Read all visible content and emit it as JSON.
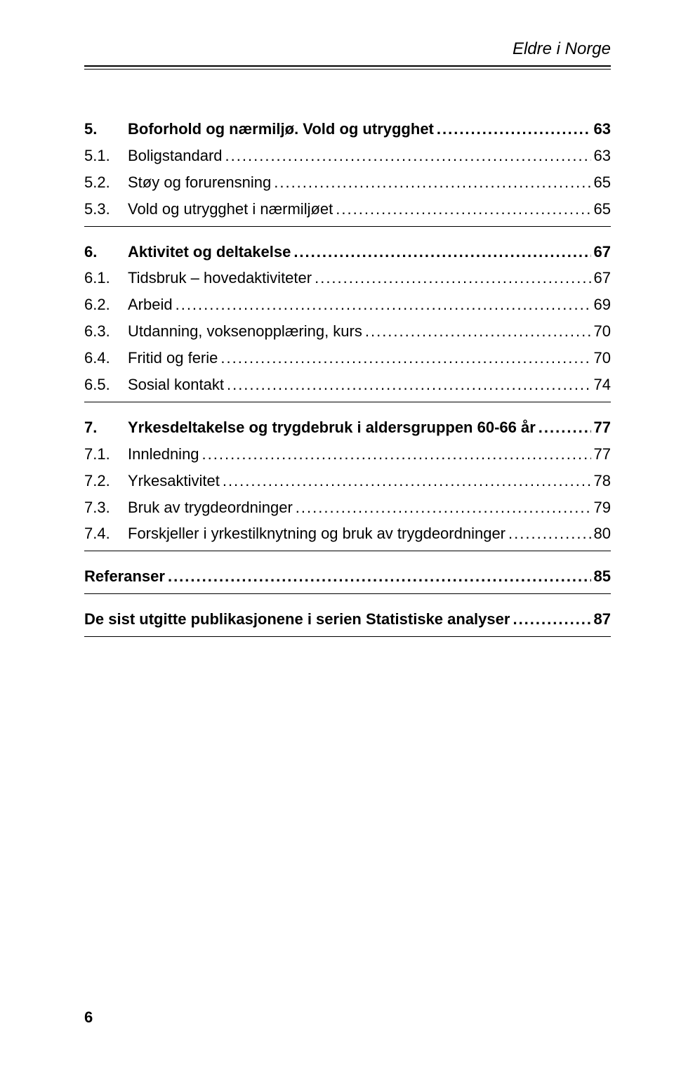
{
  "header": {
    "title": "Eldre i Norge"
  },
  "leader_fill": "............................................................................................................................................................................................",
  "sections": [
    {
      "head": {
        "num": "5.",
        "label": "Boforhold og nærmiljø. Vold og utrygghet",
        "page": "63",
        "bold": true
      },
      "rows": [
        {
          "num": "5.1.",
          "label": "Boligstandard",
          "page": "63"
        },
        {
          "num": "5.2.",
          "label": "Støy og forurensning",
          "page": "65"
        },
        {
          "num": "5.3.",
          "label": "Vold og utrygghet i nærmiljøet",
          "page": "65"
        }
      ]
    },
    {
      "head": {
        "num": "6.",
        "label": "Aktivitet og deltakelse",
        "page": "67",
        "bold": true
      },
      "rows": [
        {
          "num": "6.1.",
          "label": "Tidsbruk – hovedaktiviteter",
          "page": "67"
        },
        {
          "num": "6.2.",
          "label": "Arbeid",
          "page": "69"
        },
        {
          "num": "6.3.",
          "label": "Utdanning, voksenopplæring, kurs",
          "page": "70"
        },
        {
          "num": "6.4.",
          "label": "Fritid og ferie",
          "page": "70"
        },
        {
          "num": "6.5.",
          "label": "Sosial kontakt",
          "page": "74"
        }
      ]
    },
    {
      "head": {
        "num": "7.",
        "label": "Yrkesdeltakelse og trygdebruk i aldersgruppen 60-66 år",
        "page": "77",
        "bold": true
      },
      "rows": [
        {
          "num": "7.1.",
          "label": "Innledning",
          "page": "77"
        },
        {
          "num": "7.2.",
          "label": "Yrkesaktivitet",
          "page": "78"
        },
        {
          "num": "7.3.",
          "label": "Bruk av trygdeordninger",
          "page": "79"
        },
        {
          "num": "7.4.",
          "label": "Forskjeller i yrkestilknytning og bruk av trygdeordninger",
          "page": "80"
        }
      ]
    },
    {
      "head": {
        "num": "",
        "label": "Referanser",
        "page": "85",
        "bold": true,
        "nosub": true
      },
      "rows": []
    },
    {
      "head": {
        "num": "",
        "label": "De sist utgitte publikasjonene i serien Statistiske analyser",
        "page": "87",
        "bold": true,
        "nosub": true
      },
      "rows": []
    }
  ],
  "footer": {
    "page_number": "6"
  }
}
